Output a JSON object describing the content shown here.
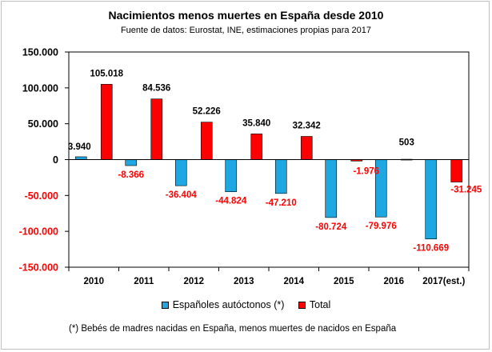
{
  "chart_data": {
    "type": "bar",
    "title": "Nacimientos menos muertes en España desde 2010",
    "subtitle": "Fuente de datos: Eurostat, INE, estimaciones propias para 2017",
    "categories": [
      "2010",
      "2011",
      "2012",
      "2013",
      "2014",
      "2015",
      "2016",
      "2017(est.)"
    ],
    "series": [
      {
        "name": "Españoles autóctonos (*)",
        "color": "#1ea7e0",
        "values": [
          3940,
          -8366,
          -36404,
          -44824,
          -47210,
          -80724,
          -79976,
          -110669
        ],
        "labels": [
          "3.940",
          "-8.366",
          "-36.404",
          "-44.824",
          "-47.210",
          "-80.724",
          "-79.976",
          "-110.669"
        ]
      },
      {
        "name": "Total",
        "color": "#ff0000",
        "values": [
          105018,
          84536,
          52226,
          35840,
          32342,
          -1976,
          503,
          -31245
        ],
        "labels": [
          "105.018",
          "84.536",
          "52.226",
          "35.840",
          "32.342",
          "-1.976",
          "503",
          "-31.245"
        ]
      }
    ],
    "ylim": [
      -150000,
      150000
    ],
    "yticks": [
      150000,
      100000,
      50000,
      0,
      -50000,
      -100000,
      -150000
    ],
    "ytick_labels": [
      "150.000",
      "100.000",
      "50.000",
      "0",
      "-50.000",
      "-100.000",
      "-150.000"
    ],
    "positive_tick_color": "#000000",
    "negative_tick_color": "#ff0000",
    "grid": false,
    "legend_position": "bottom",
    "footnote": "(*) Bebés de madres nacidas en España, menos muertes de nacidos en España"
  }
}
